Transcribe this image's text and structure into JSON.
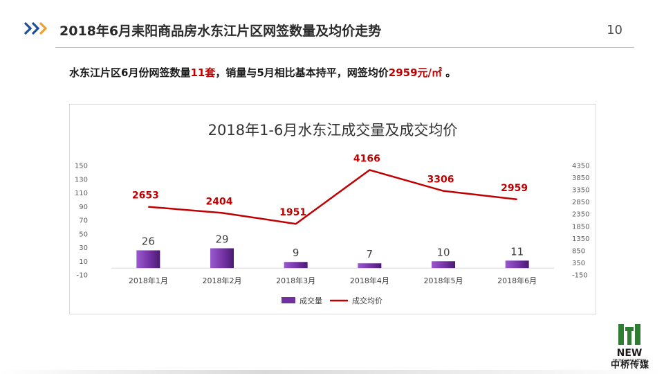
{
  "header": {
    "title": "2018年6月耒阳商品房水东江片区网签数量及均价走势",
    "page_number": "10"
  },
  "summary": {
    "part1": "水东江片区6月份网签数量",
    "count": "11套",
    "part2": "，销量与5月相比基本持平，网签均价",
    "price": "2959元/㎡",
    "part3": " 。"
  },
  "logo": {
    "name": "中桥传媒",
    "wordmark": "NEW",
    "sub": "ZHONGQIAO MEDIA"
  },
  "colors": {
    "bar": "#7030a0",
    "line": "#c00000",
    "accent_blue": "#1f4e9b",
    "accent_orange": "#f0a030"
  },
  "chart_data": {
    "type": "bar",
    "title": "2018年1-6月水东江成交量及成交均价",
    "categories": [
      "2018年1月",
      "2018年2月",
      "2018年3月",
      "2018年4月",
      "2018年5月",
      "2018年6月"
    ],
    "series": [
      {
        "name": "成交量",
        "type": "bar",
        "axis": "left",
        "values": [
          26,
          29,
          9,
          7,
          10,
          11
        ]
      },
      {
        "name": "成交均价",
        "type": "line",
        "axis": "right",
        "values": [
          2653,
          2404,
          1951,
          4166,
          3306,
          2959
        ]
      }
    ],
    "y_left": {
      "ylim": [
        -10,
        150
      ],
      "ticks": [
        -10,
        10,
        30,
        50,
        70,
        90,
        110,
        130,
        150
      ]
    },
    "y_right": {
      "ylim": [
        -150,
        4350
      ],
      "ticks": [
        -150,
        350,
        850,
        1350,
        1850,
        2350,
        2850,
        3350,
        3850,
        4350
      ]
    },
    "legend": "bottom",
    "grid": false
  }
}
